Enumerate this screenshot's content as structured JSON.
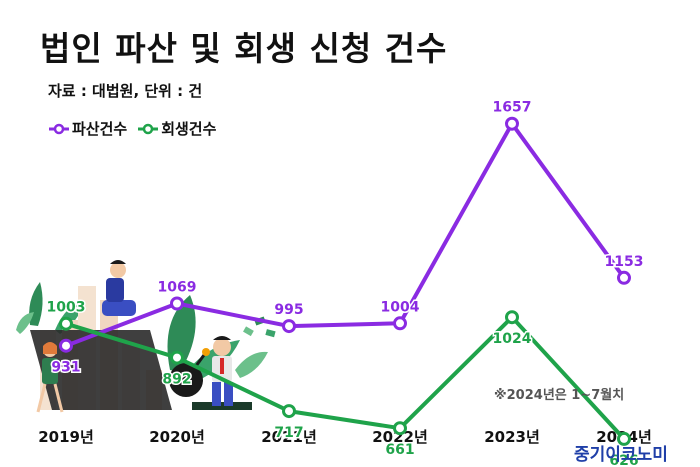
{
  "title": "법인 파산 및 회생 신청 건수",
  "source_line": "자료 : 대법원, 단위 : 건",
  "note": "※2024년은 1~7월치",
  "brand": "중기이코노미",
  "colors": {
    "bankruptcy": "#8a2be2",
    "rehabilitation": "#1fa34a"
  },
  "icons": [
    "business-stress-illustration"
  ],
  "chart_data": {
    "type": "line",
    "categories": [
      "2019년",
      "2020년",
      "2021년",
      "2022년",
      "2023년",
      "2024년"
    ],
    "series": [
      {
        "name": "파산건수",
        "values": [
          931,
          1069,
          995,
          1004,
          1657,
          1153
        ]
      },
      {
        "name": "회생건수",
        "values": [
          1003,
          892,
          717,
          661,
          1024,
          626
        ]
      }
    ],
    "ylim": [
      400,
      1800
    ],
    "grid": false,
    "legend": "top-left"
  }
}
